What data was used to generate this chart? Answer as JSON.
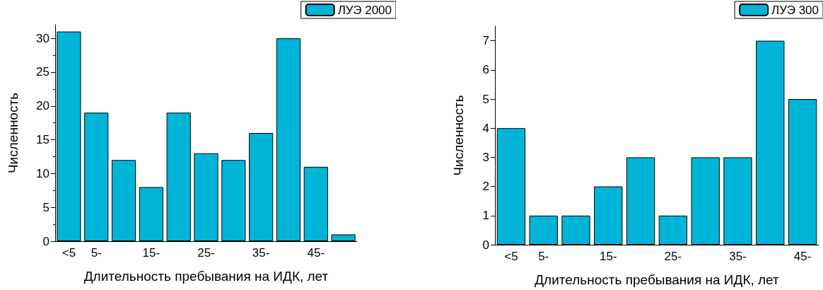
{
  "chart_data": [
    {
      "type": "bar",
      "xlabel": "Длительность пребывания на ИДК, лет",
      "ylabel": "Численность",
      "categories": [
        "<5",
        "5-",
        null,
        "15-",
        null,
        "25-",
        null,
        "35-",
        null,
        "45-",
        null
      ],
      "series": [
        {
          "name": "ЛУЭ 2000",
          "color": "#00b4d8",
          "values": [
            31,
            19,
            12,
            8,
            19,
            13,
            12,
            16,
            30,
            11,
            1
          ]
        }
      ],
      "ylim": [
        0,
        32
      ],
      "yticks": [
        0,
        5,
        10,
        15,
        20,
        25,
        30
      ],
      "grid": false,
      "legend": "top right"
    },
    {
      "type": "bar",
      "xlabel": "Длительность пребывания на ИДК, лет",
      "ylabel": "Численность",
      "categories": [
        "<5",
        "5-",
        null,
        "15-",
        null,
        "25-",
        null,
        "35-",
        null,
        "45-"
      ],
      "series": [
        {
          "name": "ЛУЭ 300",
          "color": "#00b4d8",
          "values": [
            4,
            1,
            1,
            2,
            3,
            1,
            3,
            3,
            7,
            5
          ]
        }
      ],
      "ylim": [
        0,
        7.5
      ],
      "yticks": [
        0,
        1,
        2,
        3,
        4,
        5,
        6,
        7
      ],
      "grid": false,
      "legend": "top right"
    }
  ]
}
